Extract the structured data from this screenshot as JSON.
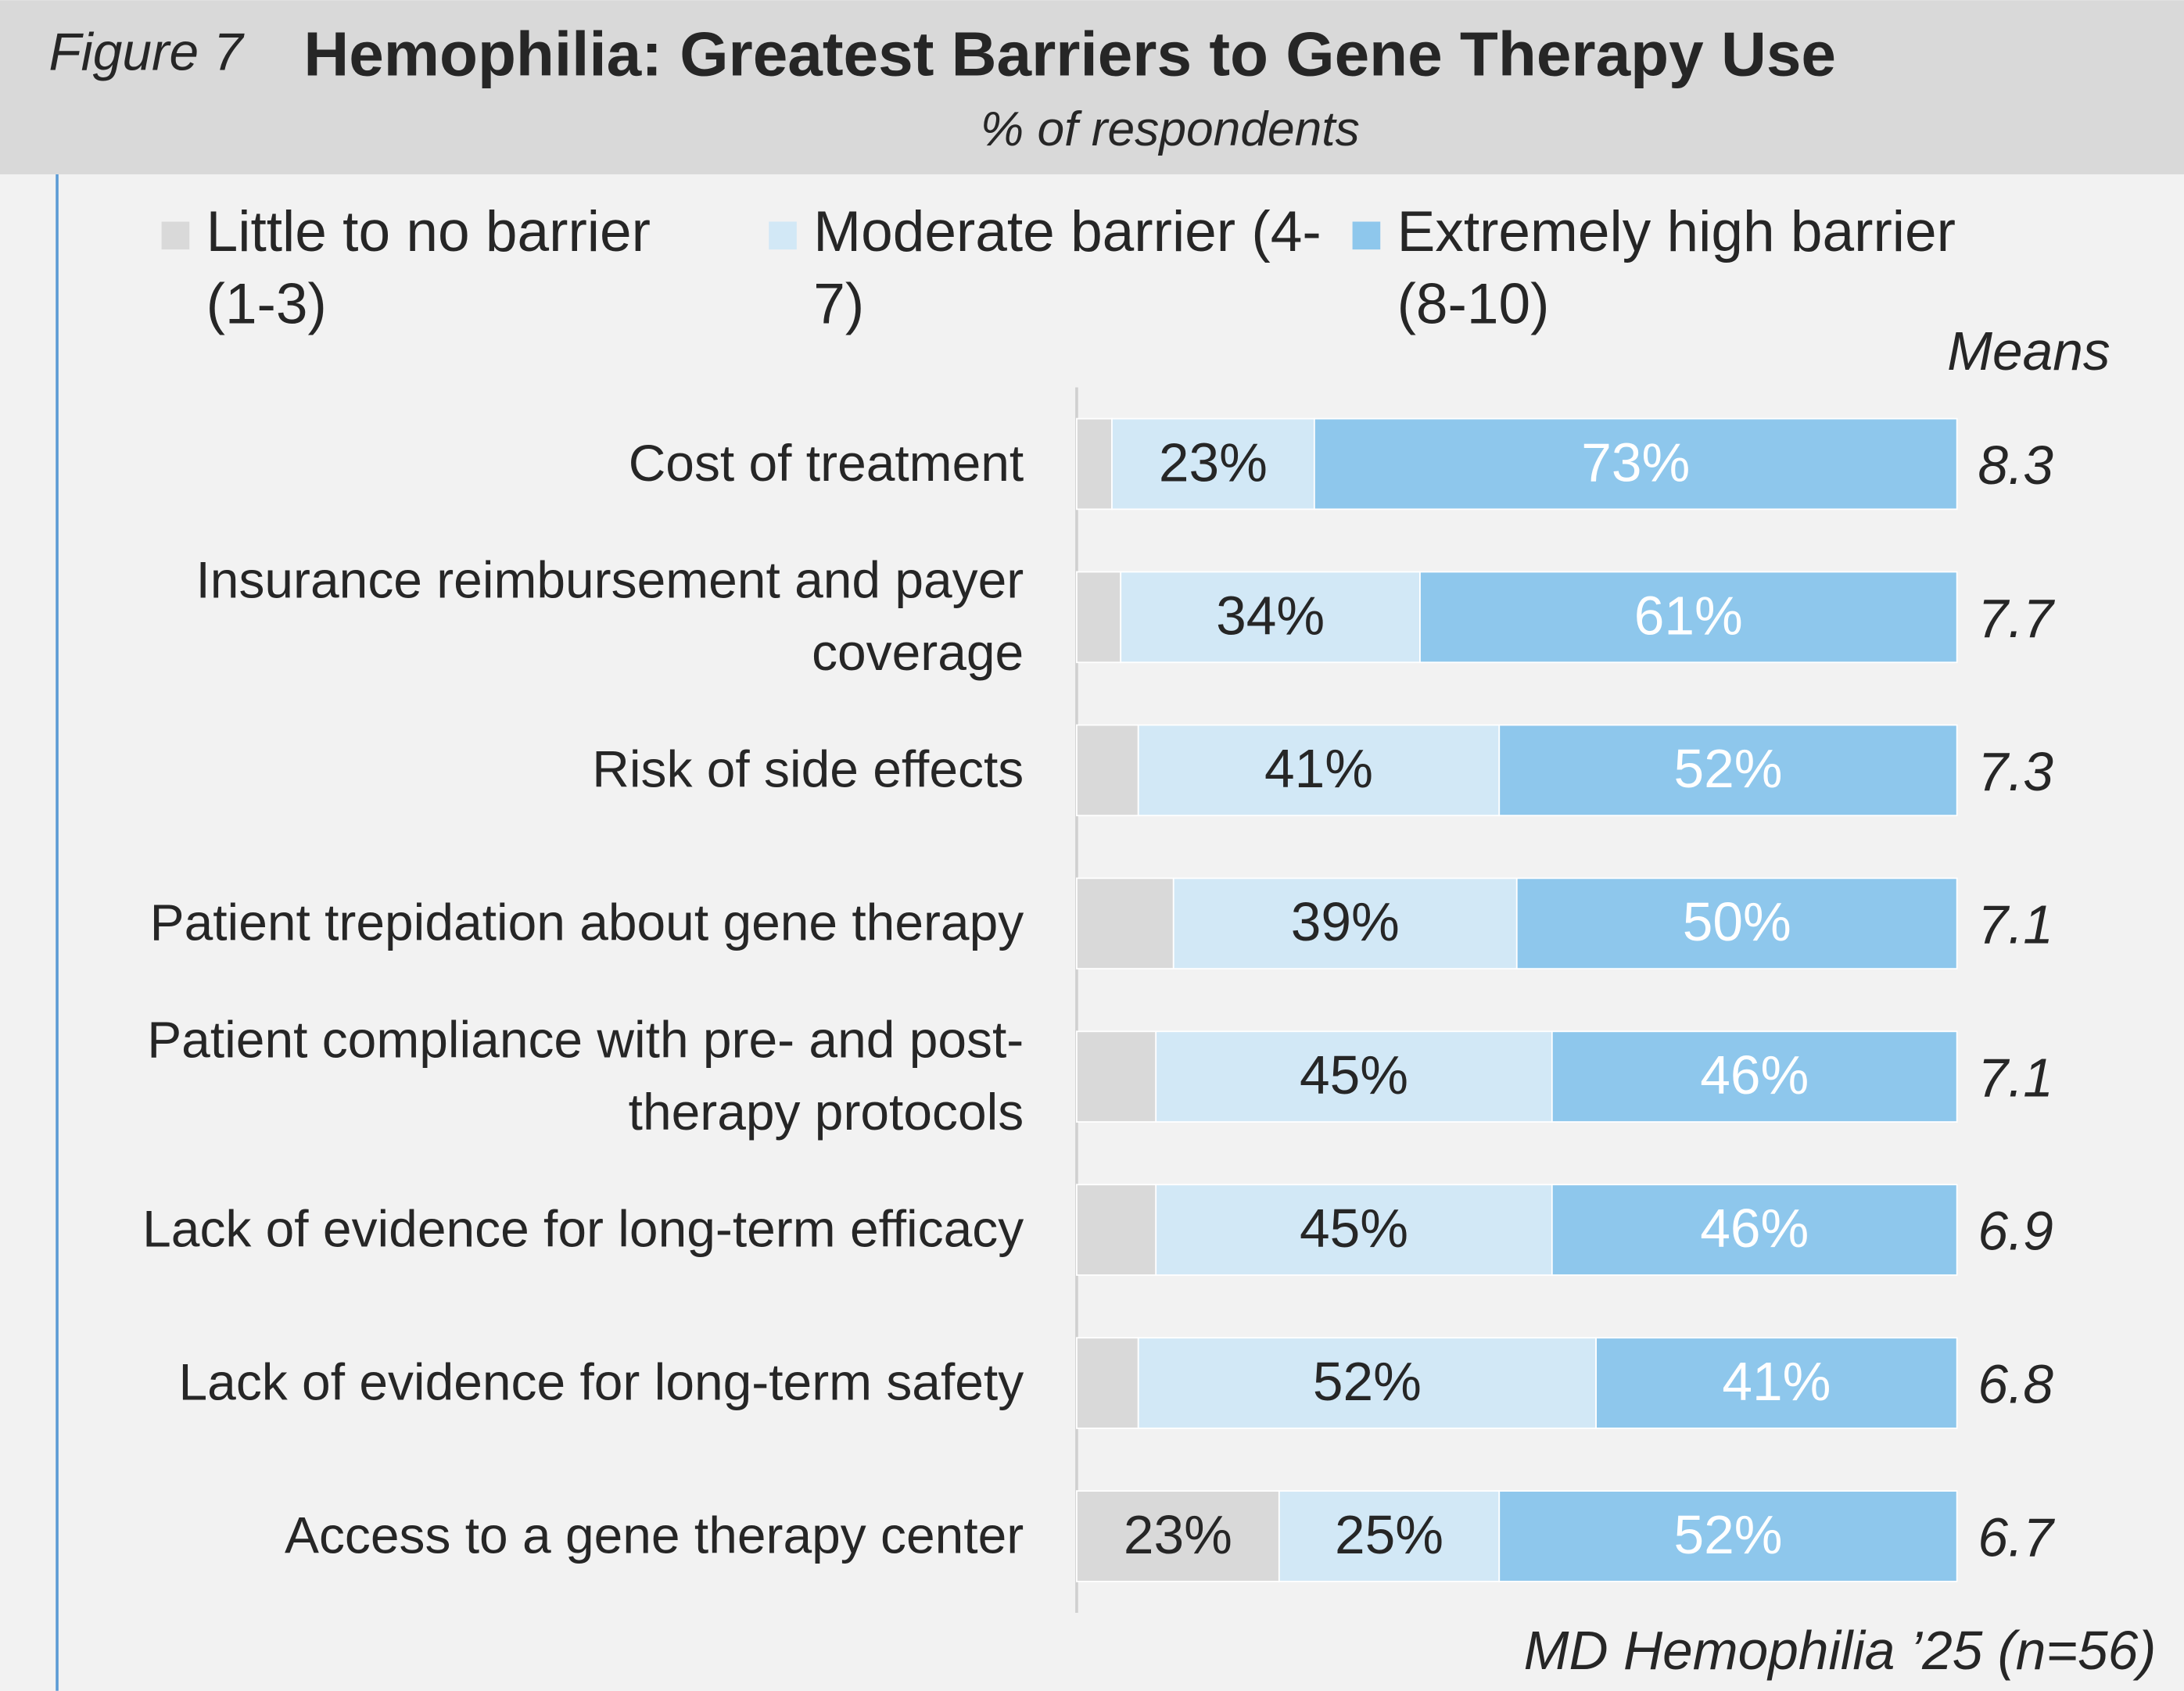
{
  "chart_data": {
    "type": "stacked_bar_horizontal",
    "figure_label": "Figure 7",
    "title": "Hemophilia: Greatest Barriers to Gene Therapy Use",
    "subtitle": "% of respondents",
    "means_label": "Means",
    "source": "MD Hemophilia ’25 (n=56)",
    "categories": [
      "Cost of treatment",
      "Insurance reimbursement and payer coverage",
      "Risk of side effects",
      "Patient trepidation about gene therapy",
      "Patient compliance with pre- and post-therapy protocols",
      "Lack of evidence for long-term efficacy",
      "Lack of evidence for long-term safety",
      "Access to a gene therapy center"
    ],
    "xlim": [
      0,
      100
    ],
    "series": [
      {
        "name": "Little to no barrier (1-3)",
        "color": "#d9d9d9",
        "label_color": "#262626",
        "values": [
          4,
          5,
          7,
          11,
          9,
          9,
          7,
          23
        ],
        "value_labels": [
          null,
          null,
          null,
          null,
          null,
          null,
          null,
          "23%"
        ]
      },
      {
        "name": "Moderate barrier (4-7)",
        "color": "#d2e8f6",
        "label_color": "#262626",
        "values": [
          23,
          34,
          41,
          39,
          45,
          45,
          52,
          25
        ],
        "value_labels": [
          "23%",
          "34%",
          "41%",
          "39%",
          "45%",
          "45%",
          "52%",
          "25%"
        ]
      },
      {
        "name": "Extremely high barrier (8-10)",
        "color": "#8ec7ec",
        "label_color": "#ffffff",
        "values": [
          73,
          61,
          52,
          50,
          46,
          46,
          41,
          52
        ],
        "value_labels": [
          "73%",
          "61%",
          "52%",
          "50%",
          "46%",
          "46%",
          "41%",
          "52%"
        ]
      }
    ],
    "means": [
      8.3,
      7.7,
      7.3,
      7.1,
      7.1,
      6.9,
      6.8,
      6.7
    ]
  }
}
